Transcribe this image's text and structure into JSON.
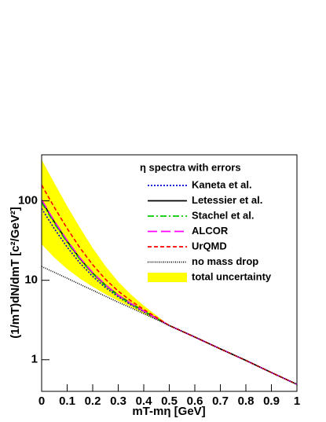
{
  "chart_data": {
    "type": "line",
    "x_label": "mT-mη [GeV]",
    "y_label": "(1/mT)dN/dmT [c²/GeV²]",
    "legend_title": "η spectra with errors",
    "legend_position": "upper right",
    "log_y": true,
    "x": [
      0,
      0.05,
      0.1,
      0.15,
      0.2,
      0.25,
      0.3,
      0.35,
      0.4,
      0.5,
      0.6,
      0.7,
      0.8,
      0.9,
      1
    ],
    "xlim": [
      0,
      1
    ],
    "xticks": [
      0,
      0.1,
      0.2,
      0.3,
      0.4,
      0.5,
      0.6,
      0.7,
      0.8,
      0.9,
      1
    ],
    "ylim": [
      0.4,
      380
    ],
    "yticks": [
      1,
      10,
      100
    ],
    "band": {
      "name": "total uncertainty",
      "color": "#ffff00",
      "upper": [
        330,
        167,
        86,
        46,
        25.5,
        15.1,
        9.6,
        6.6,
        4.8,
        2.7,
        1.93,
        1.37,
        0.98,
        0.69,
        0.49
      ],
      "lower": [
        28.5,
        19.3,
        13.9,
        10.5,
        8.3,
        6.7,
        5.5,
        4.6,
        3.8,
        2.7,
        1.93,
        1.37,
        0.98,
        0.69,
        0.49
      ]
    },
    "series": [
      {
        "name": "Kaneta et al.",
        "color": "#0000cc",
        "style": "dotted",
        "values": [
          80,
          44.5,
          26.2,
          16.5,
          11.2,
          8.1,
          6.2,
          4.9,
          4.0,
          2.7,
          1.93,
          1.37,
          0.98,
          0.69,
          0.49
        ]
      },
      {
        "name": "Letessier et al.",
        "color": "#000000",
        "style": "solid",
        "values": [
          100,
          54.3,
          31.0,
          18.8,
          12.3,
          8.7,
          6.5,
          5.1,
          4.1,
          2.7,
          1.93,
          1.37,
          0.98,
          0.69,
          0.49
        ]
      },
      {
        "name": "Stachel et al.",
        "color": "#00cc00",
        "style": "dashdot",
        "values": [
          95,
          51.8,
          29.8,
          18.3,
          12.1,
          8.5,
          6.4,
          5.0,
          4.1,
          2.7,
          1.93,
          1.37,
          0.98,
          0.69,
          0.49
        ]
      },
      {
        "name": "ALCOR",
        "color": "#ff00ff",
        "style": "longdash",
        "values": [
          103,
          55.7,
          31.7,
          19.2,
          12.5,
          8.8,
          6.5,
          5.1,
          4.1,
          2.7,
          1.93,
          1.37,
          0.98,
          0.69,
          0.49
        ]
      },
      {
        "name": "UrQMD",
        "color": "#ff0000",
        "style": "dashed",
        "values": [
          158,
          82.6,
          44.9,
          25.6,
          15.7,
          10.3,
          7.3,
          5.5,
          4.3,
          2.7,
          1.93,
          1.37,
          0.98,
          0.69,
          0.49
        ]
      },
      {
        "name": "no mass drop",
        "color": "#000000",
        "style": "finedotted",
        "values": [
          14.9,
          12.6,
          10.6,
          8.9,
          7.5,
          6.3,
          5.3,
          4.5,
          3.8,
          2.7,
          1.93,
          1.37,
          0.98,
          0.69,
          0.49
        ]
      }
    ]
  }
}
